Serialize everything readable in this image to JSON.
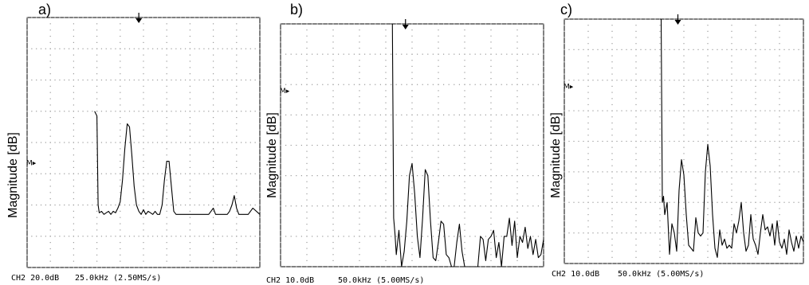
{
  "chart_data": [
    {
      "type": "line",
      "panel_label": "a)",
      "ylabel": "Magnitude [dB]",
      "footer_left": "CH2 20.0dB",
      "footer_right": "25.0kHz (2.50MS/s)",
      "marker_text": "M▸",
      "marker_level_div": 3.35,
      "trigger_arrow_div": 4.8,
      "grid": {
        "x_divisions": 10,
        "y_divisions": 8
      },
      "xlim": [
        0,
        10
      ],
      "ylim": [
        0,
        8
      ],
      "x": [
        2.9,
        3.0,
        3.05,
        3.1,
        3.2,
        3.3,
        3.4,
        3.5,
        3.6,
        3.7,
        3.8,
        3.9,
        4.0,
        4.1,
        4.2,
        4.3,
        4.4,
        4.5,
        4.6,
        4.7,
        4.8,
        4.9,
        5.0,
        5.1,
        5.2,
        5.3,
        5.4,
        5.5,
        5.6,
        5.7,
        5.8,
        5.9,
        6.0,
        6.1,
        6.2,
        6.3,
        6.4,
        6.5,
        6.6,
        6.7,
        6.8,
        6.9,
        7.0,
        7.5,
        7.8,
        7.9,
        8.0,
        8.1,
        8.2,
        8.3,
        8.6,
        8.7,
        8.8,
        8.9,
        9.0,
        9.1,
        9.2,
        9.3,
        9.5,
        9.7,
        10.0
      ],
      "y": [
        5.0,
        4.85,
        2.0,
        1.75,
        1.8,
        1.7,
        1.75,
        1.8,
        1.7,
        1.8,
        1.75,
        1.9,
        2.1,
        2.8,
        3.8,
        4.6,
        4.5,
        3.6,
        2.6,
        2.0,
        1.8,
        1.7,
        1.85,
        1.7,
        1.8,
        1.75,
        1.7,
        1.8,
        1.7,
        1.7,
        2.0,
        2.8,
        3.4,
        3.4,
        2.6,
        1.8,
        1.7,
        1.7,
        1.7,
        1.7,
        1.7,
        1.7,
        1.7,
        1.7,
        1.7,
        1.8,
        1.9,
        1.7,
        1.7,
        1.7,
        1.7,
        1.8,
        2.0,
        2.3,
        1.9,
        1.7,
        1.7,
        1.7,
        1.7,
        1.9,
        1.7
      ]
    },
    {
      "type": "line",
      "panel_label": "b)",
      "ylabel": "Magnitude [dB]",
      "footer_left": "CH2 10.0dB",
      "footer_right": "50.0kHz (5.00MS/s)",
      "marker_text": "M▸",
      "marker_level_div": 5.8,
      "trigger_arrow_div": 4.75,
      "grid": {
        "x_divisions": 10,
        "y_divisions": 8
      },
      "xlim": [
        0,
        10
      ],
      "ylim": [
        0,
        8
      ],
      "x": [
        4.2,
        4.25,
        4.3,
        4.35,
        4.4,
        4.5,
        4.6,
        4.7,
        4.8,
        4.9,
        5.0,
        5.1,
        5.2,
        5.3,
        5.4,
        5.5,
        5.6,
        5.7,
        5.8,
        5.9,
        6.0,
        6.1,
        6.2,
        6.3,
        6.4,
        6.5,
        6.6,
        6.7,
        6.8,
        6.9,
        7.0,
        7.1,
        7.2,
        7.3,
        7.4,
        7.5,
        7.6,
        7.7,
        7.8,
        7.9,
        8.0,
        8.1,
        8.2,
        8.3,
        8.4,
        8.5,
        8.6,
        8.7,
        8.8,
        8.9,
        9.0,
        9.1,
        9.2,
        9.3,
        9.4,
        9.5,
        9.6,
        9.7,
        9.8,
        9.9,
        10.0
      ],
      "y": [
        8.0,
        8.0,
        1.6,
        1.1,
        0.4,
        1.2,
        0.0,
        0.5,
        1.5,
        3.0,
        3.4,
        2.4,
        1.0,
        0.3,
        1.6,
        3.2,
        3.0,
        1.5,
        0.3,
        0.2,
        0.8,
        1.5,
        1.4,
        0.4,
        0.3,
        0.0,
        0.0,
        0.8,
        1.4,
        0.5,
        0.0,
        0.0,
        0.0,
        0.0,
        0.0,
        0.0,
        1.0,
        0.9,
        0.2,
        0.9,
        1.0,
        1.2,
        0.3,
        0.8,
        0.0,
        1.0,
        1.0,
        1.6,
        0.7,
        1.5,
        0.3,
        1.0,
        0.8,
        1.3,
        0.6,
        1.0,
        0.4,
        0.9,
        0.3,
        0.4,
        0.9
      ]
    },
    {
      "type": "line",
      "panel_label": "c)",
      "ylabel": "Magnitude [dB]",
      "footer_left": "CH2 10.0dB",
      "footer_right": "50.0kHz (5.00MS/s)",
      "marker_text": "M▸",
      "marker_level_div": 5.8,
      "trigger_arrow_div": 4.75,
      "grid": {
        "x_divisions": 10,
        "y_divisions": 8
      },
      "xlim": [
        0,
        10
      ],
      "ylim": [
        0,
        8
      ],
      "x": [
        4.0,
        4.05,
        4.1,
        4.15,
        4.2,
        4.3,
        4.4,
        4.5,
        4.6,
        4.7,
        4.8,
        4.9,
        5.0,
        5.1,
        5.2,
        5.3,
        5.4,
        5.5,
        5.6,
        5.7,
        5.8,
        5.9,
        6.0,
        6.1,
        6.2,
        6.3,
        6.4,
        6.5,
        6.6,
        6.7,
        6.8,
        6.9,
        7.0,
        7.1,
        7.2,
        7.3,
        7.4,
        7.5,
        7.6,
        7.7,
        7.8,
        7.9,
        8.0,
        8.1,
        8.2,
        8.3,
        8.4,
        8.5,
        8.6,
        8.7,
        8.8,
        8.9,
        9.0,
        9.1,
        9.2,
        9.3,
        9.4,
        9.5,
        9.6,
        9.7,
        9.8,
        9.9,
        10.0
      ],
      "y": [
        8.0,
        8.0,
        2.0,
        2.2,
        1.6,
        2.0,
        0.3,
        1.3,
        1.0,
        0.4,
        2.4,
        3.4,
        2.9,
        1.6,
        0.6,
        0.5,
        0.4,
        1.5,
        1.0,
        0.9,
        1.0,
        3.0,
        3.9,
        3.2,
        1.6,
        0.5,
        0.2,
        1.1,
        0.6,
        0.8,
        0.5,
        0.6,
        0.5,
        1.3,
        1.0,
        1.4,
        2.0,
        1.0,
        0.4,
        0.6,
        1.6,
        0.8,
        0.6,
        0.3,
        1.0,
        1.6,
        1.1,
        1.2,
        0.9,
        1.3,
        0.6,
        1.4,
        0.7,
        0.5,
        0.8,
        0.3,
        1.1,
        0.7,
        0.4,
        0.9,
        0.5,
        0.9,
        0.7
      ]
    }
  ]
}
